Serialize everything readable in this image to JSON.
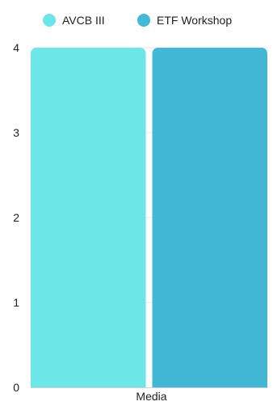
{
  "chart_data": {
    "type": "bar",
    "categories": [
      "Media"
    ],
    "series": [
      {
        "name": "AVCB III",
        "values": [
          4
        ],
        "color": "#6de6e8"
      },
      {
        "name": "ETF Workshop",
        "values": [
          4
        ],
        "color": "#43b8d6"
      }
    ],
    "ylim": [
      0,
      4
    ],
    "yticks": [
      "0",
      "1",
      "2",
      "3",
      "4"
    ],
    "grid": true,
    "legend_position": "top"
  }
}
